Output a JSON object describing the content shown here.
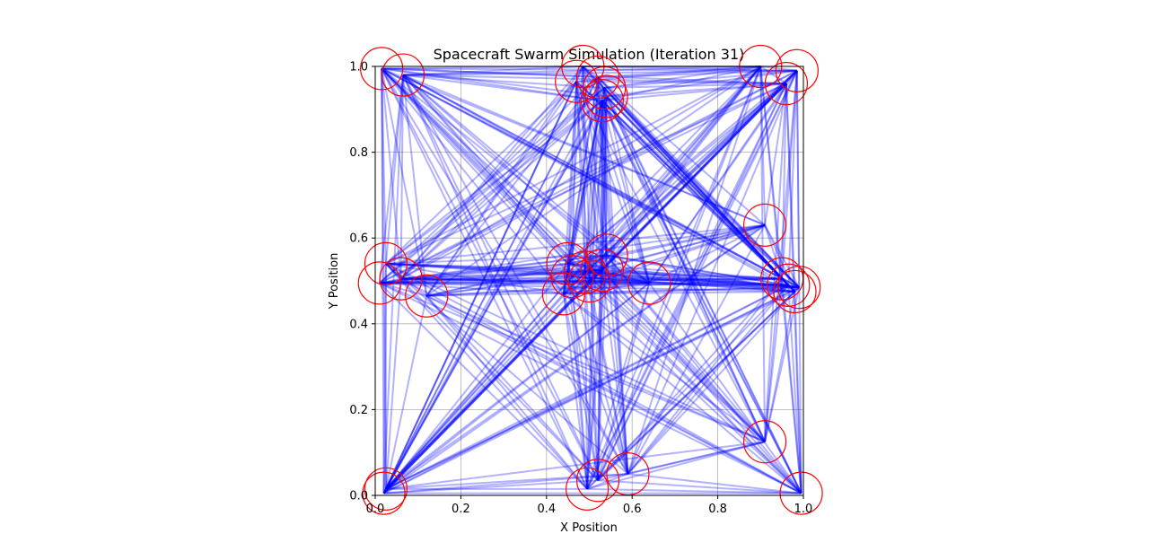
{
  "chart_data": {
    "type": "scatter",
    "title": "Spacecraft Swarm Simulation (Iteration 31)",
    "xlabel": "X Position",
    "ylabel": "Y Position",
    "xlim": [
      0,
      1
    ],
    "ylim": [
      0,
      1
    ],
    "xticks": [
      "0.0",
      "0.2",
      "0.4",
      "0.6",
      "0.8",
      "1.0"
    ],
    "yticks": [
      "0.0",
      "0.2",
      "0.4",
      "0.6",
      "0.8",
      "1.0"
    ],
    "grid": true,
    "colors": {
      "links": "#0000ff",
      "craft": "#ff0000",
      "grid": "#b0b0b0"
    },
    "spacecraft": [
      {
        "x": 0.015,
        "y": 0.995
      },
      {
        "x": 0.065,
        "y": 0.98
      },
      {
        "x": 0.47,
        "y": 0.965
      },
      {
        "x": 0.485,
        "y": 1.0
      },
      {
        "x": 0.52,
        "y": 0.975
      },
      {
        "x": 0.535,
        "y": 0.95
      },
      {
        "x": 0.54,
        "y": 0.93
      },
      {
        "x": 0.53,
        "y": 0.92
      },
      {
        "x": 0.9,
        "y": 1.0
      },
      {
        "x": 0.96,
        "y": 0.96
      },
      {
        "x": 0.985,
        "y": 0.99
      },
      {
        "x": 0.91,
        "y": 0.63
      },
      {
        "x": 0.025,
        "y": 0.54
      },
      {
        "x": 0.06,
        "y": 0.505
      },
      {
        "x": 0.01,
        "y": 0.495
      },
      {
        "x": 0.12,
        "y": 0.465
      },
      {
        "x": 0.45,
        "y": 0.54
      },
      {
        "x": 0.49,
        "y": 0.52
      },
      {
        "x": 0.53,
        "y": 0.525
      },
      {
        "x": 0.54,
        "y": 0.56
      },
      {
        "x": 0.5,
        "y": 0.5
      },
      {
        "x": 0.44,
        "y": 0.47
      },
      {
        "x": 0.46,
        "y": 0.51
      },
      {
        "x": 0.64,
        "y": 0.495
      },
      {
        "x": 0.95,
        "y": 0.505
      },
      {
        "x": 0.98,
        "y": 0.475
      },
      {
        "x": 0.965,
        "y": 0.49
      },
      {
        "x": 0.99,
        "y": 0.485
      },
      {
        "x": 0.91,
        "y": 0.125
      },
      {
        "x": 0.025,
        "y": 0.015
      },
      {
        "x": 0.495,
        "y": 0.015
      },
      {
        "x": 0.52,
        "y": 0.035
      },
      {
        "x": 0.59,
        "y": 0.05
      },
      {
        "x": 0.995,
        "y": 0.005
      },
      {
        "x": 0.02,
        "y": 0.005
      }
    ],
    "link_fraction": 0.65
  }
}
